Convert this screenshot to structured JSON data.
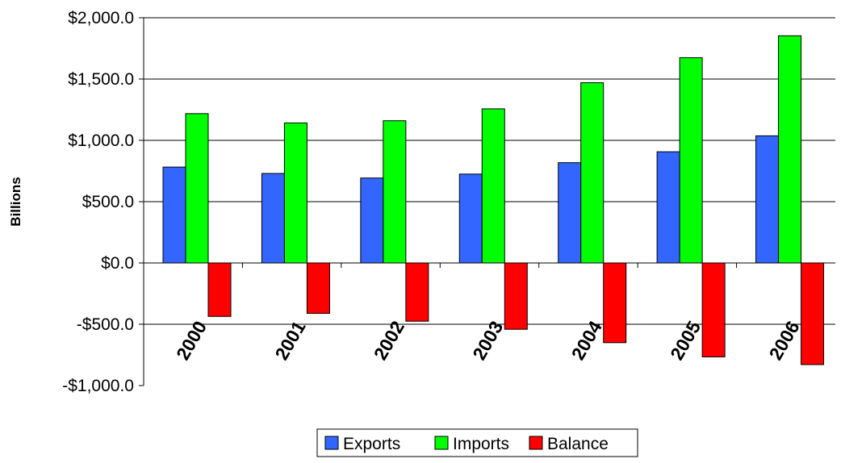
{
  "chart_data": {
    "type": "bar",
    "categories": [
      "2000",
      "2001",
      "2002",
      "2003",
      "2004",
      "2005",
      "2006"
    ],
    "series": [
      {
        "name": "Exports",
        "color": "#3366FF",
        "values": [
          782,
          730,
          693,
          725,
          818,
          907,
          1037
        ]
      },
      {
        "name": "Imports",
        "color": "#00FF00",
        "values": [
          1218,
          1142,
          1160,
          1257,
          1470,
          1674,
          1853
        ]
      },
      {
        "name": "Balance",
        "color": "#FF0000",
        "values": [
          -436,
          -411,
          -475,
          -541,
          -650,
          -766,
          -829
        ]
      }
    ],
    "ylabel": "Billions",
    "ylim": [
      -1000,
      2000
    ],
    "yticks": [
      2000,
      1500,
      1000,
      500,
      0,
      -500,
      -1000
    ],
    "ytick_labels": [
      "$2,000.0",
      "$1,500.0",
      "$1,000.0",
      "$500.0",
      "$0.0",
      "-$500.0",
      "-$1,000.0"
    ],
    "grid": true,
    "legend_position": "bottom"
  }
}
